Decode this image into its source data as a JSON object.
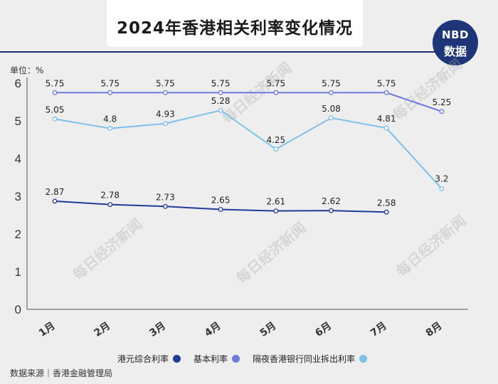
{
  "header": {
    "title": "2024年香港相关利率变化情况"
  },
  "logo": {
    "line1": "NBD",
    "line2": "数据"
  },
  "unit_label": "单位：%",
  "source_label": "数据来源｜香港金融管理局",
  "watermark": "每日经济新闻",
  "colors": {
    "hkd_composite": "#1f3c96",
    "best_lending": "#6b7be0",
    "hibor": "#7cc1ea",
    "axis": "#555555"
  },
  "chart_data": {
    "type": "line",
    "title": "2024年香港相关利率变化情况",
    "categories": [
      "1月",
      "2月",
      "3月",
      "4月",
      "5月",
      "6月",
      "7月",
      "8月"
    ],
    "ylabel": "单位：%",
    "ylim": [
      0,
      6
    ],
    "yticks": [
      0,
      1,
      2,
      3,
      4,
      5,
      6
    ],
    "series": [
      {
        "name": "港元综合利率",
        "color": "#1f3c96",
        "values": [
          2.87,
          2.78,
          2.73,
          2.65,
          2.61,
          2.62,
          2.58,
          null
        ],
        "labels": [
          "2.87",
          "2.78",
          "2.73",
          "2.65",
          "2.61",
          "2.62",
          "2.58",
          ""
        ]
      },
      {
        "name": "基本利率",
        "color": "#6b7be0",
        "values": [
          5.75,
          5.75,
          5.75,
          5.75,
          5.75,
          5.75,
          5.75,
          5.25
        ],
        "labels": [
          "5.75",
          "5.75",
          "5.75",
          "5.75",
          "5.75",
          "5.75",
          "5.75",
          "5.25"
        ]
      },
      {
        "name": "隔夜香港银行同业拆出利率",
        "color": "#7cc1ea",
        "values": [
          5.05,
          4.8,
          4.93,
          5.28,
          4.25,
          5.08,
          4.81,
          3.2
        ],
        "labels": [
          "5.05",
          "4.8",
          "4.93",
          "5.28",
          "4.25",
          "5.08",
          "4.81",
          "3.2"
        ]
      }
    ],
    "legend_position": "bottom"
  }
}
